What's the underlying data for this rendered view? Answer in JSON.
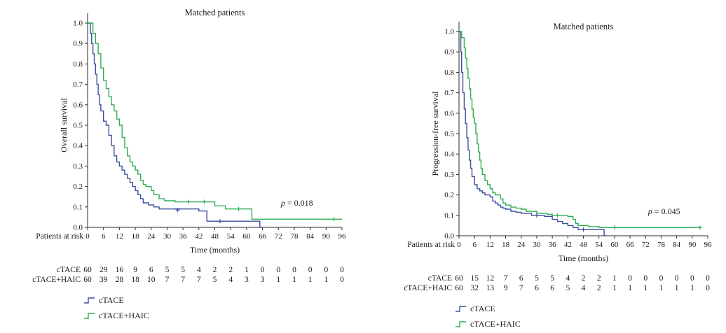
{
  "colors": {
    "ctace": "#3c4ea1",
    "ctace_haic": "#2fae54",
    "axis": "#2b2b2b",
    "text": "#1a1a1a",
    "background": "#ffffff"
  },
  "chart_data": [
    {
      "type": "line",
      "subtype": "kaplan-meier-step",
      "title": "Matched patients",
      "xlabel": "Time (months)",
      "ylabel": "Overall survival",
      "xlim": [
        0,
        96
      ],
      "ylim": [
        0,
        1.0
      ],
      "xticks": [
        0,
        6,
        12,
        18,
        24,
        30,
        36,
        42,
        48,
        54,
        60,
        66,
        72,
        78,
        84,
        90,
        96
      ],
      "yticks": [
        0.0,
        0.1,
        0.2,
        0.3,
        0.4,
        0.5,
        0.6,
        0.7,
        0.8,
        0.9,
        1.0
      ],
      "grid": false,
      "p_text": "p = 0.018",
      "series": [
        {
          "name": "cTACE",
          "color": "#3c4ea1",
          "steps": [
            [
              0,
              1.0
            ],
            [
              1,
              0.95
            ],
            [
              1.5,
              0.9
            ],
            [
              2,
              0.85
            ],
            [
              2.5,
              0.8
            ],
            [
              3,
              0.75
            ],
            [
              3.5,
              0.7
            ],
            [
              4,
              0.65
            ],
            [
              4.5,
              0.6
            ],
            [
              5,
              0.57
            ],
            [
              6,
              0.52
            ],
            [
              7,
              0.5
            ],
            [
              8,
              0.45
            ],
            [
              9,
              0.4
            ],
            [
              10,
              0.35
            ],
            [
              11,
              0.32
            ],
            [
              12,
              0.3
            ],
            [
              13,
              0.28
            ],
            [
              14,
              0.26
            ],
            [
              15,
              0.24
            ],
            [
              16,
              0.22
            ],
            [
              17,
              0.2
            ],
            [
              18,
              0.18
            ],
            [
              19,
              0.16
            ],
            [
              20,
              0.14
            ],
            [
              21,
              0.12
            ],
            [
              23,
              0.11
            ],
            [
              25,
              0.1
            ],
            [
              27,
              0.09
            ],
            [
              42,
              0.08
            ],
            [
              45,
              0.03
            ],
            [
              64,
              0.03
            ],
            [
              65,
              0.0
            ],
            [
              66,
              0.0
            ]
          ],
          "censors": [
            [
              34,
              0.085
            ],
            [
              50,
              0.03
            ]
          ]
        },
        {
          "name": "cTACE+HAIC",
          "color": "#2fae54",
          "steps": [
            [
              0,
              1.0
            ],
            [
              2,
              0.95
            ],
            [
              3,
              0.9
            ],
            [
              4,
              0.85
            ],
            [
              5,
              0.78
            ],
            [
              6,
              0.72
            ],
            [
              7,
              0.68
            ],
            [
              8,
              0.64
            ],
            [
              9,
              0.6
            ],
            [
              10,
              0.57
            ],
            [
              11,
              0.53
            ],
            [
              12,
              0.5
            ],
            [
              13,
              0.44
            ],
            [
              14,
              0.39
            ],
            [
              15,
              0.35
            ],
            [
              16,
              0.32
            ],
            [
              17,
              0.3
            ],
            [
              18,
              0.28
            ],
            [
              19,
              0.26
            ],
            [
              20,
              0.23
            ],
            [
              21,
              0.21
            ],
            [
              22,
              0.2
            ],
            [
              24,
              0.18
            ],
            [
              25,
              0.16
            ],
            [
              27,
              0.14
            ],
            [
              29,
              0.13
            ],
            [
              33,
              0.125
            ],
            [
              48,
              0.105
            ],
            [
              52,
              0.09
            ],
            [
              62,
              0.04
            ],
            [
              96,
              0.04
            ]
          ],
          "censors": [
            [
              38,
              0.125
            ],
            [
              44,
              0.125
            ],
            [
              57,
              0.09
            ],
            [
              93,
              0.04
            ]
          ]
        }
      ],
      "risk_table": {
        "label": "Patients at risk",
        "times": [
          0,
          6,
          12,
          18,
          24,
          30,
          36,
          42,
          48,
          54,
          60,
          66,
          72,
          78,
          84,
          90,
          96
        ],
        "rows": [
          {
            "name": "cTACE",
            "counts": [
              60,
              29,
              16,
              9,
              6,
              5,
              5,
              4,
              2,
              2,
              1,
              0,
              0,
              0,
              0,
              0,
              0
            ]
          },
          {
            "name": "cTACE+HAIC",
            "counts": [
              60,
              39,
              28,
              18,
              10,
              7,
              7,
              7,
              5,
              4,
              3,
              3,
              1,
              1,
              1,
              1,
              0
            ]
          }
        ]
      },
      "legend": [
        "cTACE",
        "cTACE+HAIC"
      ],
      "legend_position": "bottom-left"
    },
    {
      "type": "line",
      "subtype": "kaplan-meier-step",
      "title": "Matched patients",
      "xlabel": "Time (months)",
      "ylabel": "Progression-free survival",
      "xlim": [
        0,
        96
      ],
      "ylim": [
        0,
        1.0
      ],
      "xticks": [
        0,
        6,
        12,
        18,
        24,
        30,
        36,
        42,
        48,
        54,
        60,
        66,
        72,
        78,
        84,
        90,
        96
      ],
      "yticks": [
        0.0,
        0.1,
        0.2,
        0.3,
        0.4,
        0.5,
        0.6,
        0.7,
        0.8,
        0.9,
        1.0
      ],
      "grid": false,
      "p_text": "p = 0.045",
      "series": [
        {
          "name": "cTACE",
          "color": "#3c4ea1",
          "steps": [
            [
              0,
              1.0
            ],
            [
              0.7,
              0.9
            ],
            [
              1,
              0.8
            ],
            [
              1.5,
              0.7
            ],
            [
              2,
              0.62
            ],
            [
              2.5,
              0.55
            ],
            [
              3,
              0.48
            ],
            [
              3.5,
              0.42
            ],
            [
              4,
              0.37
            ],
            [
              4.5,
              0.33
            ],
            [
              5,
              0.29
            ],
            [
              6,
              0.25
            ],
            [
              7,
              0.23
            ],
            [
              8,
              0.22
            ],
            [
              9,
              0.21
            ],
            [
              10,
              0.2
            ],
            [
              12,
              0.19
            ],
            [
              13,
              0.17
            ],
            [
              14,
              0.16
            ],
            [
              15,
              0.15
            ],
            [
              16,
              0.14
            ],
            [
              17,
              0.135
            ],
            [
              18,
              0.13
            ],
            [
              20,
              0.12
            ],
            [
              22,
              0.115
            ],
            [
              24,
              0.11
            ],
            [
              28,
              0.1
            ],
            [
              33,
              0.095
            ],
            [
              36,
              0.08
            ],
            [
              38,
              0.07
            ],
            [
              40,
              0.06
            ],
            [
              42,
              0.05
            ],
            [
              44,
              0.04
            ],
            [
              46,
              0.03
            ],
            [
              55,
              0.03
            ],
            [
              56,
              0.0
            ],
            [
              57,
              0.0
            ]
          ],
          "censors": [
            [
              30,
              0.1
            ],
            [
              48,
              0.03
            ]
          ]
        },
        {
          "name": "cTACE+HAIC",
          "color": "#2fae54",
          "steps": [
            [
              0,
              1.0
            ],
            [
              1,
              0.97
            ],
            [
              2,
              0.92
            ],
            [
              2.5,
              0.87
            ],
            [
              3,
              0.82
            ],
            [
              3.5,
              0.77
            ],
            [
              4,
              0.72
            ],
            [
              4.5,
              0.67
            ],
            [
              5,
              0.62
            ],
            [
              5.5,
              0.58
            ],
            [
              6,
              0.55
            ],
            [
              6.5,
              0.5
            ],
            [
              7,
              0.45
            ],
            [
              7.5,
              0.41
            ],
            [
              8,
              0.37
            ],
            [
              8.5,
              0.33
            ],
            [
              9,
              0.3
            ],
            [
              10,
              0.27
            ],
            [
              11,
              0.25
            ],
            [
              12,
              0.23
            ],
            [
              13,
              0.21
            ],
            [
              14,
              0.2
            ],
            [
              16,
              0.18
            ],
            [
              17,
              0.16
            ],
            [
              18,
              0.15
            ],
            [
              20,
              0.14
            ],
            [
              22,
              0.135
            ],
            [
              24,
              0.13
            ],
            [
              26,
              0.12
            ],
            [
              30,
              0.11
            ],
            [
              34,
              0.105
            ],
            [
              36,
              0.1
            ],
            [
              42,
              0.095
            ],
            [
              44,
              0.08
            ],
            [
              45,
              0.06
            ],
            [
              46,
              0.05
            ],
            [
              50,
              0.045
            ],
            [
              54,
              0.04
            ],
            [
              93,
              0.04
            ]
          ],
          "censors": [
            [
              38,
              0.1
            ],
            [
              60,
              0.04
            ],
            [
              93,
              0.04
            ]
          ]
        }
      ],
      "risk_table": {
        "label": "Patients at risk",
        "times": [
          0,
          6,
          12,
          18,
          24,
          30,
          36,
          42,
          48,
          54,
          60,
          66,
          72,
          78,
          84,
          90,
          96
        ],
        "rows": [
          {
            "name": "cTACE",
            "counts": [
              60,
              15,
              12,
              7,
              6,
              5,
              5,
              4,
              2,
              2,
              1,
              0,
              0,
              0,
              0,
              0,
              0
            ]
          },
          {
            "name": "cTACE+HAIC",
            "counts": [
              60,
              32,
              13,
              9,
              7,
              6,
              6,
              5,
              4,
              2,
              1,
              1,
              1,
              1,
              1,
              1,
              0
            ]
          }
        ]
      },
      "legend": [
        "cTACE",
        "cTACE+HAIC"
      ],
      "legend_position": "bottom-left"
    }
  ]
}
